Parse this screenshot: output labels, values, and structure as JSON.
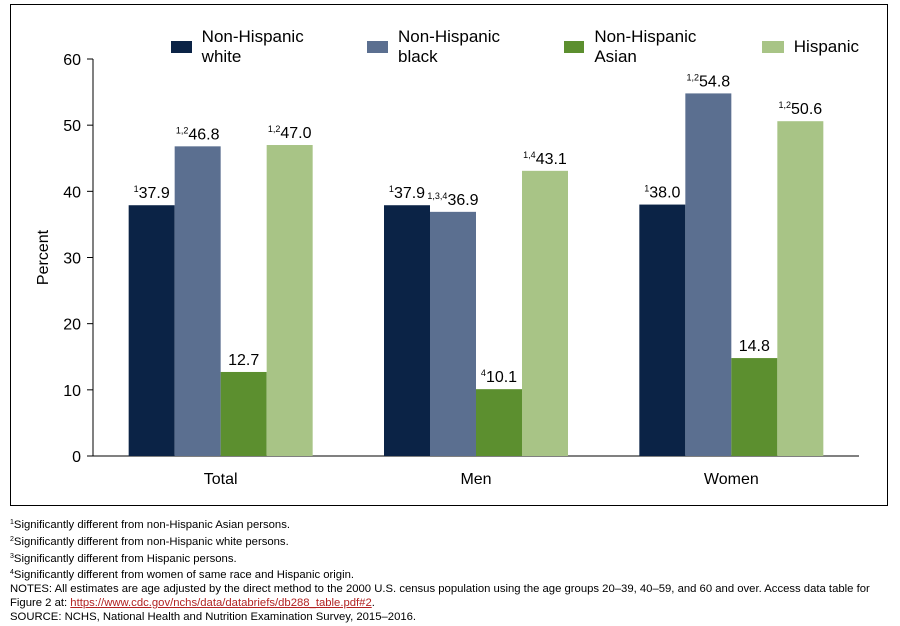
{
  "chart_data": {
    "type": "bar",
    "categories": [
      "Total",
      "Men",
      "Women"
    ],
    "ylabel": "Percent",
    "ylim": [
      0,
      60
    ],
    "yticks": [
      0,
      10,
      20,
      30,
      40,
      50,
      60
    ],
    "legend_position": "top",
    "series": [
      {
        "name": "Non-Hispanic white",
        "color": "#0b2346",
        "values": [
          37.9,
          37.9,
          38.0
        ],
        "labels": [
          "37.9",
          "37.9",
          "38.0"
        ],
        "sups": [
          "1",
          "1",
          "1"
        ]
      },
      {
        "name": "Non-Hispanic black",
        "color": "#5b6f90",
        "values": [
          46.8,
          36.9,
          54.8
        ],
        "labels": [
          "46.8",
          "36.9",
          "54.8"
        ],
        "sups": [
          "1,2",
          "1,3,4",
          "1,2"
        ]
      },
      {
        "name": "Non-Hispanic Asian",
        "color": "#5c8f2f",
        "values": [
          12.7,
          10.1,
          14.8
        ],
        "labels": [
          "12.7",
          "10.1",
          "14.8"
        ],
        "sups": [
          "",
          "4",
          ""
        ]
      },
      {
        "name": "Hispanic",
        "color": "#a8c486",
        "values": [
          47.0,
          43.1,
          50.6
        ],
        "labels": [
          "47.0",
          "43.1",
          "50.6"
        ],
        "sups": [
          "1,2",
          "1,4",
          "1,2"
        ]
      }
    ]
  },
  "footnotes": [
    {
      "sup": "1",
      "text": "Significantly different from non-Hispanic Asian persons."
    },
    {
      "sup": "2",
      "text": "Significantly different from non-Hispanic white persons."
    },
    {
      "sup": "3",
      "text": "Significantly different from Hispanic persons."
    },
    {
      "sup": "4",
      "text": "Significantly different from women of same race and Hispanic origin."
    }
  ],
  "notes": {
    "text": "NOTES: All estimates are age adjusted by the direct method to the 2000 U.S. census population using the age groups 20–39, 40–59, and 60 and over. Access data table for Figure 2 at: ",
    "link": "https://www.cdc.gov/nchs/data/databriefs/db288_table.pdf#2",
    "link_suffix": "."
  },
  "source": "SOURCE: NCHS, National Health and Nutrition Examination Survey, 2015–2016."
}
